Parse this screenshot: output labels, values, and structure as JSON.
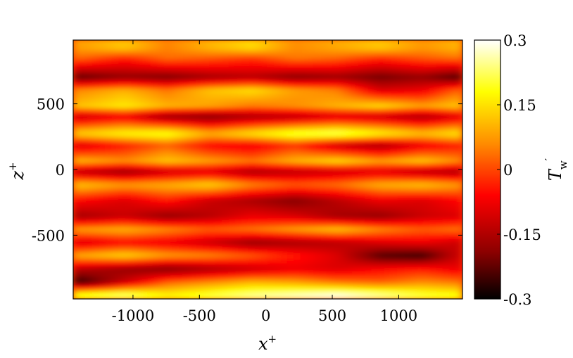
{
  "chart_data": {
    "type": "heatmap",
    "title": "",
    "xlabel": "x",
    "xlabel_sup": "+",
    "ylabel": "z",
    "ylabel_sup": "+",
    "xlim": [
      -1450,
      1480
    ],
    "ylim": [
      -985,
      985
    ],
    "xticks": [
      -1000,
      -500,
      0,
      500,
      1000
    ],
    "xtick_labels": [
      "-1000",
      "-500",
      "0",
      "500",
      "1000"
    ],
    "yticks": [
      -500,
      0,
      500
    ],
    "ytick_labels": [
      "-500",
      "0",
      "500"
    ],
    "colorbar": {
      "label": "T",
      "label_sup": "′",
      "label_sub": "w",
      "range": [
        -0.3,
        0.3
      ],
      "ticks": [
        0.3,
        0.15,
        0,
        -0.15,
        -0.3
      ],
      "tick_labels": [
        "0.3",
        "0.15",
        "0",
        "-0.15",
        "-0.3"
      ],
      "colormap": "hot",
      "colors": [
        "#000000",
        "#8b0000",
        "#ff0000",
        "#ff8c00",
        "#ffff00",
        "#ffffff"
      ]
    },
    "field": {
      "description_free": true,
      "z_rows": [
        {
          "z": 920,
          "values": [
            0.08,
            0.12,
            0.05,
            0.1,
            0.14,
            0.06,
            0.09,
            0.12,
            0.07,
            0.1
          ]
        },
        {
          "z": 840,
          "values": [
            0.02,
            -0.04,
            0.03,
            0.01,
            -0.02,
            0.04,
            0.02,
            -0.03,
            0.01,
            0.03
          ]
        },
        {
          "z": 700,
          "values": [
            -0.22,
            -0.18,
            -0.2,
            -0.16,
            -0.14,
            -0.19,
            -0.17,
            -0.21,
            -0.18,
            -0.24
          ]
        },
        {
          "z": 600,
          "values": [
            0.06,
            0.1,
            0.04,
            0.12,
            0.15,
            0.08,
            0.05,
            -0.1,
            -0.08,
            0.02
          ]
        },
        {
          "z": 480,
          "values": [
            0.12,
            0.16,
            0.1,
            0.08,
            0.04,
            0.06,
            0.1,
            0.14,
            0.08,
            0.12
          ]
        },
        {
          "z": 400,
          "values": [
            -0.12,
            -0.08,
            -0.18,
            -0.2,
            -0.16,
            -0.14,
            -0.1,
            -0.12,
            -0.16,
            -0.1
          ]
        },
        {
          "z": 270,
          "values": [
            0.14,
            0.18,
            0.2,
            0.1,
            0.16,
            0.22,
            0.24,
            0.18,
            0.12,
            0.16
          ]
        },
        {
          "z": 180,
          "values": [
            -0.1,
            -0.04,
            0.02,
            -0.06,
            -0.08,
            -0.02,
            -0.12,
            -0.16,
            -0.08,
            -0.04
          ]
        },
        {
          "z": 60,
          "values": [
            0.1,
            0.06,
            0.12,
            0.08,
            0.04,
            0.1,
            0.14,
            0.08,
            0.12,
            0.06
          ]
        },
        {
          "z": -20,
          "values": [
            -0.14,
            -0.18,
            -0.12,
            -0.1,
            -0.16,
            -0.14,
            -0.12,
            -0.1,
            -0.14,
            -0.16
          ]
        },
        {
          "z": -120,
          "values": [
            0.12,
            0.08,
            0.1,
            0.14,
            0.06,
            0.02,
            0.04,
            0.1,
            0.12,
            0.08
          ]
        },
        {
          "z": -240,
          "values": [
            -0.06,
            -0.1,
            -0.04,
            -0.12,
            -0.16,
            -0.2,
            -0.14,
            -0.08,
            -0.1,
            -0.06
          ]
        },
        {
          "z": -360,
          "values": [
            -0.16,
            -0.12,
            -0.18,
            -0.14,
            -0.08,
            -0.1,
            -0.16,
            -0.18,
            -0.12,
            -0.1
          ]
        },
        {
          "z": -460,
          "values": [
            0.08,
            0.1,
            0.06,
            0.02,
            0.04,
            0.08,
            0.12,
            0.06,
            0.02,
            0.04
          ]
        },
        {
          "z": -560,
          "values": [
            -0.1,
            -0.06,
            -0.08,
            -0.12,
            -0.18,
            -0.16,
            -0.14,
            -0.1,
            -0.08,
            -0.12
          ]
        },
        {
          "z": -660,
          "values": [
            0.1,
            0.14,
            0.08,
            0.06,
            0.02,
            -0.04,
            -0.1,
            -0.24,
            -0.26,
            -0.12
          ]
        },
        {
          "z": -760,
          "values": [
            -0.14,
            -0.18,
            -0.2,
            -0.16,
            -0.12,
            -0.08,
            -0.1,
            -0.06,
            -0.04,
            -0.08
          ]
        },
        {
          "z": -860,
          "values": [
            -0.26,
            -0.12,
            0.02,
            0.06,
            0.1,
            0.08,
            0.04,
            0.02,
            0.06,
            0.04
          ]
        },
        {
          "z": -950,
          "values": [
            0.18,
            0.22,
            0.16,
            0.2,
            0.24,
            0.26,
            0.28,
            0.24,
            0.2,
            0.18
          ]
        }
      ],
      "x_samples": [
        -1380,
        -1060,
        -740,
        -420,
        -100,
        220,
        540,
        860,
        1180,
        1440
      ]
    }
  }
}
